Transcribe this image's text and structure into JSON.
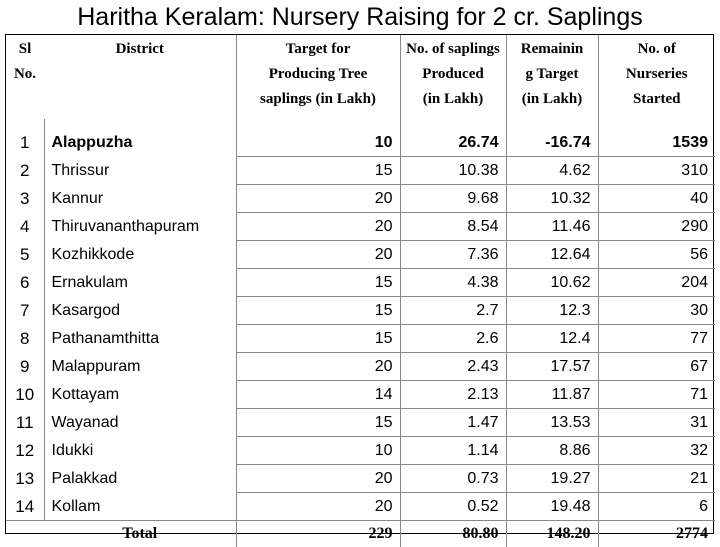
{
  "title": "Haritha Keralam: Nursery Raising for 2 cr. Saplings",
  "headers": {
    "sl": [
      "Sl",
      "No."
    ],
    "district": [
      "District"
    ],
    "target": [
      "Target for",
      "Producing Tree",
      "saplings (in Lakh)"
    ],
    "produced": [
      "No. of saplings",
      "Produced",
      "(in Lakh)"
    ],
    "remaining": [
      "Remainin",
      "g Target",
      "(in Lakh)"
    ],
    "nurseries": [
      "No. of",
      "Nurseries",
      "Started"
    ]
  },
  "rows": [
    {
      "sl": "1",
      "district": "Alappuzha",
      "target": "10",
      "produced": "26.74",
      "remaining": "-16.74",
      "nurseries": "1539"
    },
    {
      "sl": "2",
      "district": "Thrissur",
      "target": "15",
      "produced": "10.38",
      "remaining": "4.62",
      "nurseries": "310"
    },
    {
      "sl": "3",
      "district": "Kannur",
      "target": "20",
      "produced": "9.68",
      "remaining": "10.32",
      "nurseries": "40"
    },
    {
      "sl": "4",
      "district": "Thiruvananthapuram",
      "target": "20",
      "produced": "8.54",
      "remaining": "11.46",
      "nurseries": "290"
    },
    {
      "sl": "5",
      "district": "Kozhikkode",
      "target": "20",
      "produced": "7.36",
      "remaining": "12.64",
      "nurseries": "56"
    },
    {
      "sl": "6",
      "district": "Ernakulam",
      "target": "15",
      "produced": "4.38",
      "remaining": "10.62",
      "nurseries": "204"
    },
    {
      "sl": "7",
      "district": "Kasargod",
      "target": "15",
      "produced": "2.7",
      "remaining": "12.3",
      "nurseries": "30"
    },
    {
      "sl": "8",
      "district": "Pathanamthitta",
      "target": "15",
      "produced": "2.6",
      "remaining": "12.4",
      "nurseries": "77"
    },
    {
      "sl": "9",
      "district": "Malappuram",
      "target": "20",
      "produced": "2.43",
      "remaining": "17.57",
      "nurseries": "67"
    },
    {
      "sl": "10",
      "district": "Kottayam",
      "target": "14",
      "produced": "2.13",
      "remaining": "11.87",
      "nurseries": "71"
    },
    {
      "sl": "11",
      "district": "Wayanad",
      "target": "15",
      "produced": "1.47",
      "remaining": "13.53",
      "nurseries": "31"
    },
    {
      "sl": "12",
      "district": "Idukki",
      "target": "10",
      "produced": "1.14",
      "remaining": "8.86",
      "nurseries": "32"
    },
    {
      "sl": "13",
      "district": "Palakkad",
      "target": "20",
      "produced": "0.73",
      "remaining": "19.27",
      "nurseries": "21"
    },
    {
      "sl": "14",
      "district": "Kollam",
      "target": "20",
      "produced": "0.52",
      "remaining": "19.48",
      "nurseries": "6"
    }
  ],
  "total": {
    "label": "Total",
    "target": "229",
    "produced": "80.80",
    "remaining": "148.20",
    "nurseries": "2774"
  }
}
